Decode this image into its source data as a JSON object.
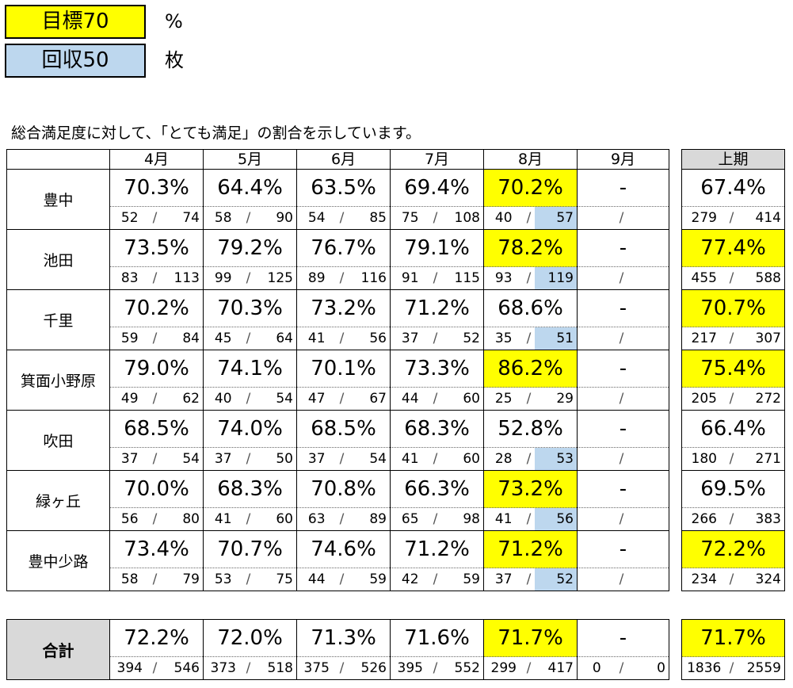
{
  "legend": {
    "target_label": "目標70",
    "target_unit": "%",
    "collect_label": "回収50",
    "collect_unit": "枚",
    "target_color": "#ffff00",
    "collect_color": "#bdd7ee"
  },
  "note": "総合満足度に対して、「とても満足」の割合を示しています。",
  "months": [
    "4月",
    "5月",
    "6月",
    "7月",
    "8月",
    "9月"
  ],
  "half_label": "上期",
  "rows": [
    {
      "name": "豊中",
      "pct": [
        "70.3%",
        "64.4%",
        "63.5%",
        "69.4%",
        "70.2%",
        "-"
      ],
      "num": [
        "52",
        "58",
        "54",
        "75",
        "40",
        ""
      ],
      "den": [
        "74",
        "90",
        "85",
        "108",
        "57",
        ""
      ],
      "half_pct": "67.4%",
      "half_num": "279",
      "half_den": "414"
    },
    {
      "name": "池田",
      "pct": [
        "73.5%",
        "79.2%",
        "76.7%",
        "79.1%",
        "78.2%",
        "-"
      ],
      "num": [
        "83",
        "99",
        "89",
        "91",
        "93",
        ""
      ],
      "den": [
        "113",
        "125",
        "116",
        "115",
        "119",
        ""
      ],
      "half_pct": "77.4%",
      "half_num": "455",
      "half_den": "588"
    },
    {
      "name": "千里",
      "pct": [
        "70.2%",
        "70.3%",
        "73.2%",
        "71.2%",
        "68.6%",
        "-"
      ],
      "num": [
        "59",
        "45",
        "41",
        "37",
        "35",
        ""
      ],
      "den": [
        "84",
        "64",
        "56",
        "52",
        "51",
        ""
      ],
      "half_pct": "70.7%",
      "half_num": "217",
      "half_den": "307"
    },
    {
      "name": "箕面小野原",
      "pct": [
        "79.0%",
        "74.1%",
        "70.1%",
        "73.3%",
        "86.2%",
        "-"
      ],
      "num": [
        "49",
        "40",
        "47",
        "44",
        "25",
        ""
      ],
      "den": [
        "62",
        "54",
        "67",
        "60",
        "29",
        ""
      ],
      "half_pct": "75.4%",
      "half_num": "205",
      "half_den": "272"
    },
    {
      "name": "吹田",
      "pct": [
        "68.5%",
        "74.0%",
        "68.5%",
        "68.3%",
        "52.8%",
        "-"
      ],
      "num": [
        "37",
        "37",
        "37",
        "41",
        "28",
        ""
      ],
      "den": [
        "54",
        "50",
        "54",
        "60",
        "53",
        ""
      ],
      "half_pct": "66.4%",
      "half_num": "180",
      "half_den": "271"
    },
    {
      "name": "緑ヶ丘",
      "pct": [
        "70.0%",
        "68.3%",
        "70.8%",
        "66.3%",
        "73.2%",
        "-"
      ],
      "num": [
        "56",
        "41",
        "63",
        "65",
        "41",
        ""
      ],
      "den": [
        "80",
        "60",
        "89",
        "98",
        "56",
        ""
      ],
      "half_pct": "69.5%",
      "half_num": "266",
      "half_den": "383"
    },
    {
      "name": "豊中少路",
      "pct": [
        "73.4%",
        "70.7%",
        "74.6%",
        "71.2%",
        "71.2%",
        "-"
      ],
      "num": [
        "58",
        "53",
        "44",
        "42",
        "37",
        ""
      ],
      "den": [
        "79",
        "75",
        "59",
        "59",
        "52",
        ""
      ],
      "half_pct": "72.2%",
      "half_num": "234",
      "half_den": "324"
    }
  ],
  "total": {
    "name": "合計",
    "pct": [
      "72.2%",
      "72.0%",
      "71.3%",
      "71.6%",
      "71.7%",
      "-"
    ],
    "num": [
      "394",
      "373",
      "375",
      "395",
      "299",
      "0"
    ],
    "den": [
      "546",
      "518",
      "526",
      "552",
      "417",
      "0"
    ],
    "half_pct": "71.7%",
    "half_num": "1836",
    "half_den": "2559"
  },
  "sep": "/"
}
